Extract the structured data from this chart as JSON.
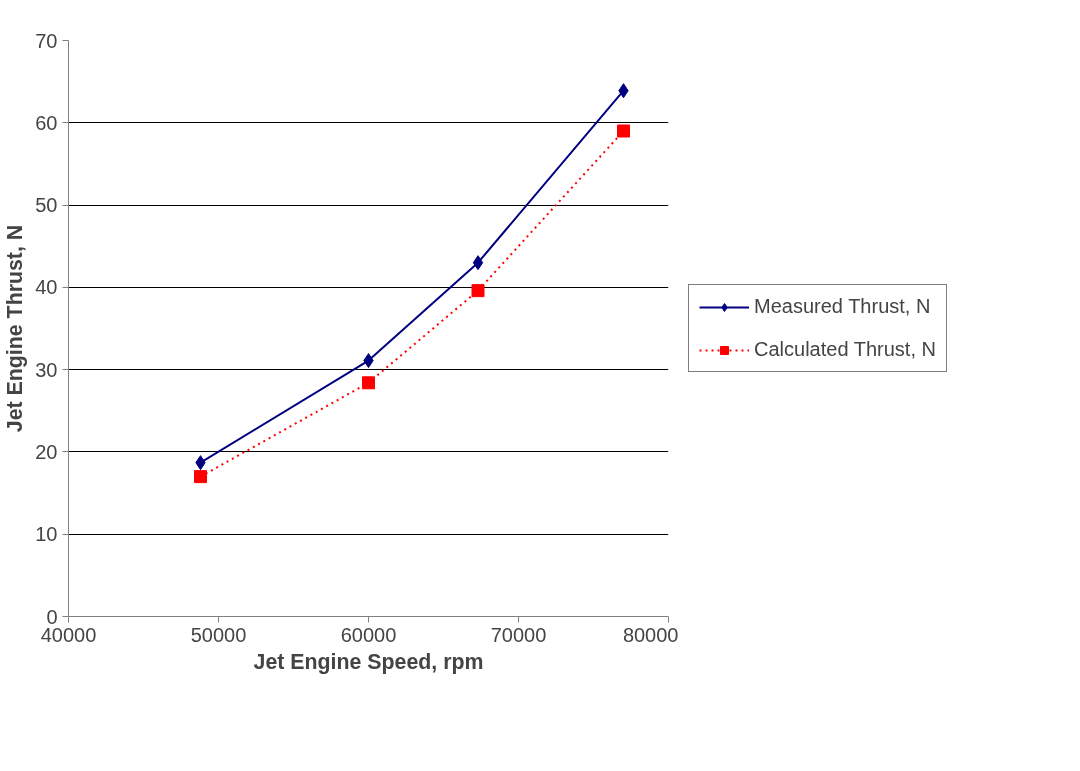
{
  "chart_data": {
    "type": "line",
    "xlabel": "Jet Engine Speed, rpm",
    "ylabel": "Jet Engine Thrust, N",
    "xlim": [
      40000,
      80000
    ],
    "xticks": [
      40000,
      50000,
      60000,
      70000,
      80000
    ],
    "ylim": [
      0,
      70
    ],
    "yticks": [
      0,
      10,
      20,
      30,
      40,
      50,
      60,
      70
    ],
    "grid": "y",
    "legend": "right",
    "series": [
      {
        "name": "Measured Thrust, N",
        "color": "#000080",
        "marker": "diamond",
        "line_style": "solid",
        "x": [
          48800,
          60000,
          67300,
          77000
        ],
        "values": [
          18.7,
          31.1,
          43.0,
          63.9
        ]
      },
      {
        "name": "Calculated Thrust, N",
        "color": "#ff0000",
        "marker": "square",
        "line_style": "dotted",
        "x": [
          48800,
          60000,
          67300,
          77000
        ],
        "values": [
          17.0,
          28.4,
          39.6,
          59.0
        ]
      }
    ]
  }
}
